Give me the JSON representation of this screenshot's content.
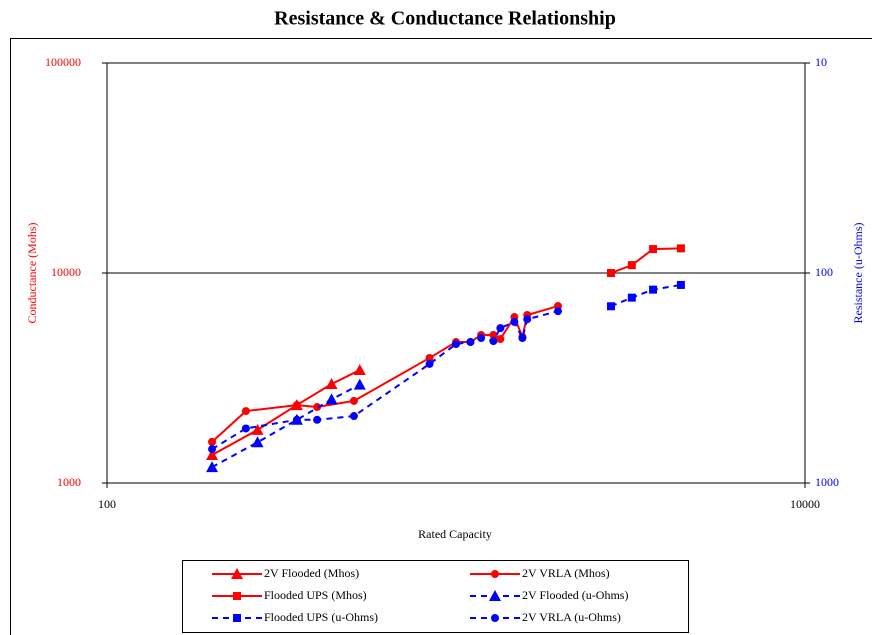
{
  "chart_data": {
    "type": "line",
    "title": "Resistance & Conductance Relationship",
    "xlabel": "Rated Capacity",
    "ylabel": "Conductance (Mohs)",
    "y2label": "Resistance (u-Ohms)",
    "xscale": "log",
    "yscale": "log",
    "y2scale": "log",
    "y2_reversed": true,
    "xlim": [
      100,
      10000
    ],
    "xticks": [
      100,
      10000
    ],
    "ylim": [
      1000,
      100000
    ],
    "yticks": [
      1000,
      10000,
      100000
    ],
    "y2lim": [
      10,
      1000
    ],
    "y2ticks": [
      10,
      100,
      1000
    ],
    "ylabel_color": "#ff0000",
    "y2label_color": "#0000ff",
    "grid": true,
    "series": [
      {
        "name": "2V Flooded (Mhos)",
        "color": "#ff0000",
        "marker": "triangle",
        "line_style": "solid",
        "x": [
          200,
          270,
          350,
          440,
          530
        ],
        "values": [
          1360,
          1790,
          2350,
          2960,
          3450
        ]
      },
      {
        "name": "2V VRLA (Mhos)",
        "color": "#ff0000",
        "marker": "circle",
        "line_style": "solid",
        "x": [
          200,
          250,
          350,
          400,
          510,
          840,
          1000,
          1100,
          1180,
          1280,
          1340,
          1470,
          1550,
          1600,
          1960
        ],
        "values": [
          1570,
          2200,
          2350,
          2300,
          2460,
          3940,
          4690,
          4690,
          5070,
          5070,
          4850,
          6170,
          4960,
          6310,
          6960
        ]
      },
      {
        "name": "Flooded UPS (Mhos)",
        "color": "#ff0000",
        "marker": "square",
        "line_style": "solid",
        "x": [
          2780,
          3190,
          3670,
          4410
        ],
        "values": [
          10000,
          10900,
          13000,
          13100
        ]
      },
      {
        "name": "2V Flooded (u-Ohms)",
        "color": "#0000ff",
        "marker": "triangle",
        "line_style": "dashed",
        "axis": "y2",
        "x": [
          200,
          270,
          350,
          440,
          530
        ],
        "values": [
          840,
          640,
          500,
          400,
          340
        ]
      },
      {
        "name": "Flooded UPS (u-Ohms)",
        "color": "#0000ff",
        "marker": "square",
        "line_style": "dashed",
        "axis": "y2",
        "x": [
          2780,
          3190,
          3670,
          4410
        ],
        "values": [
          144,
          131,
          120,
          114
        ]
      },
      {
        "name": "2V VRLA (u-Ohms)",
        "color": "#0000ff",
        "marker": "circle",
        "line_style": "dashed",
        "axis": "y2",
        "x": [
          200,
          250,
          350,
          400,
          510,
          840,
          1000,
          1100,
          1180,
          1280,
          1340,
          1470,
          1550,
          1600,
          1960
        ],
        "values": [
          690,
          550,
          500,
          500,
          480,
          271,
          218,
          213,
          204,
          211,
          183,
          171,
          204,
          166,
          152
        ]
      }
    ]
  }
}
